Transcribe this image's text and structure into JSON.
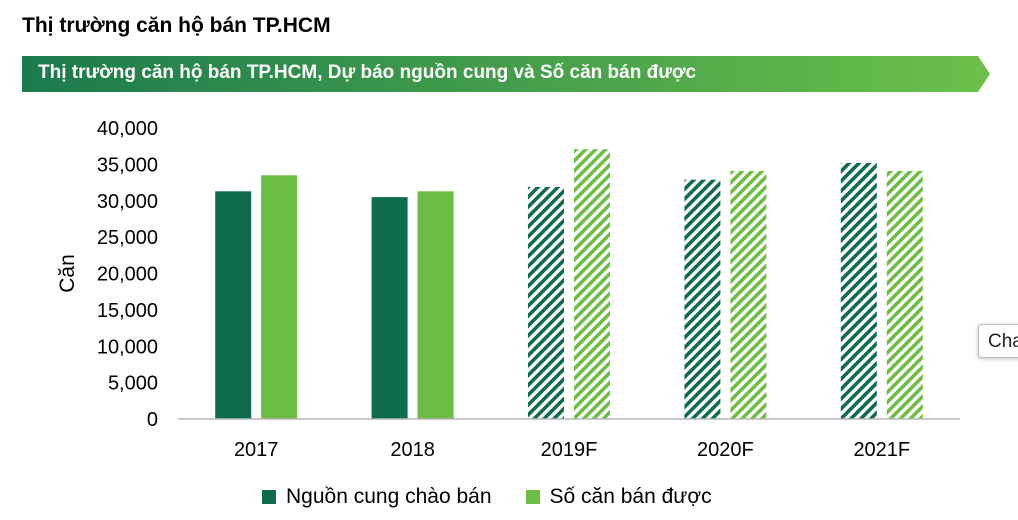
{
  "page_title": "Thị trường căn hộ bán TP.HCM",
  "banner_title": "Thị trường căn hộ bán TP.HCM, Dự báo nguồn cung và Số căn bán được",
  "tooltip_text": "Cha",
  "colors": {
    "banner_dark": "#1b7a4c",
    "banner_light": "#6cc04a",
    "supply": "#0f6b4e",
    "sold": "#6dbd45"
  },
  "chart_data": {
    "type": "bar",
    "title": "Thị trường căn hộ bán TP.HCM, Dự báo nguồn cung và Số căn bán được",
    "xlabel": "",
    "ylabel": "Căn",
    "ylim": [
      0,
      40000
    ],
    "yticks": [
      "0",
      "5,000",
      "10,000",
      "15,000",
      "20,000",
      "25,000",
      "30,000",
      "35,000",
      "40,000"
    ],
    "categories": [
      "2017",
      "2018",
      "2019F",
      "2020F",
      "2021F"
    ],
    "forecast_categories": [
      "2019F",
      "2020F",
      "2021F"
    ],
    "grid": false,
    "legend_position": "bottom",
    "series": [
      {
        "name": "Nguồn cung chào bán",
        "values": [
          31300,
          30500,
          31900,
          32900,
          35200
        ]
      },
      {
        "name": "Số căn bán được",
        "values": [
          33500,
          31300,
          37100,
          34100,
          34100
        ]
      }
    ]
  }
}
